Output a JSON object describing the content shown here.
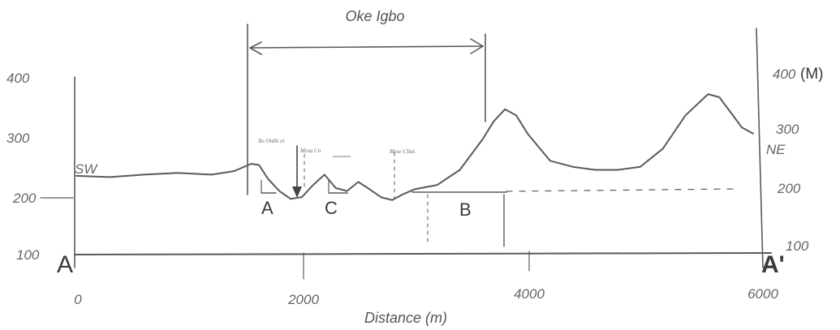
{
  "figure": {
    "title": "Oke Igbo",
    "x_axis_title": "Distance (m)",
    "x_ticks": [
      "0",
      "2000",
      "4000",
      "6000"
    ],
    "left_y_ticks": [
      "400",
      "300",
      "200",
      "100"
    ],
    "right_y_ticks": [
      "400",
      "300",
      "200",
      "100"
    ],
    "right_unit": "(M)",
    "dir_left": "SW",
    "dir_right": "NE",
    "end_left": "A",
    "end_right": "A'",
    "zone_labels": [
      "A",
      "C",
      "B"
    ],
    "annotations": [
      "Ilo Onibi el",
      "Mesa Cn",
      "Mese Cllas"
    ]
  },
  "chart_data": {
    "type": "line",
    "title": "Oke Igbo",
    "xlabel": "Distance (m)",
    "ylabel": "",
    "y_unit_right": "(M)",
    "xlim": [
      0,
      6000
    ],
    "ylim": [
      100,
      400
    ],
    "x_ticks": [
      0,
      2000,
      4000,
      6000
    ],
    "y_ticks": [
      100,
      200,
      300,
      400
    ],
    "grid": false,
    "series": [
      {
        "x": [
          0,
          300,
          600,
          900,
          1200,
          1400,
          1550,
          1620,
          1700,
          1800,
          1900,
          2000,
          2100,
          2200,
          2300,
          2400,
          2500,
          2600,
          2700,
          2800,
          2900,
          3000,
          3200,
          3400,
          3600,
          3700,
          3800,
          3900,
          4000,
          4200,
          4400,
          4600,
          4800,
          5000,
          5200,
          5400,
          5600,
          5700,
          5800,
          5900,
          6000
        ],
        "y": [
          230,
          228,
          232,
          235,
          232,
          238,
          250,
          248,
          225,
          205,
          192,
          195,
          215,
          232,
          210,
          205,
          220,
          208,
          195,
          190,
          200,
          208,
          215,
          240,
          290,
          320,
          340,
          330,
          300,
          255,
          245,
          240,
          240,
          245,
          275,
          330,
          365,
          360,
          335,
          310,
          300
        ]
      }
    ],
    "markers": {
      "oke_igbo_span_m": [
        1600,
        3650
      ],
      "dashed_verticals_m": [
        2050,
        2750,
        3100,
        3750
      ],
      "reference_level_m": 200
    }
  }
}
